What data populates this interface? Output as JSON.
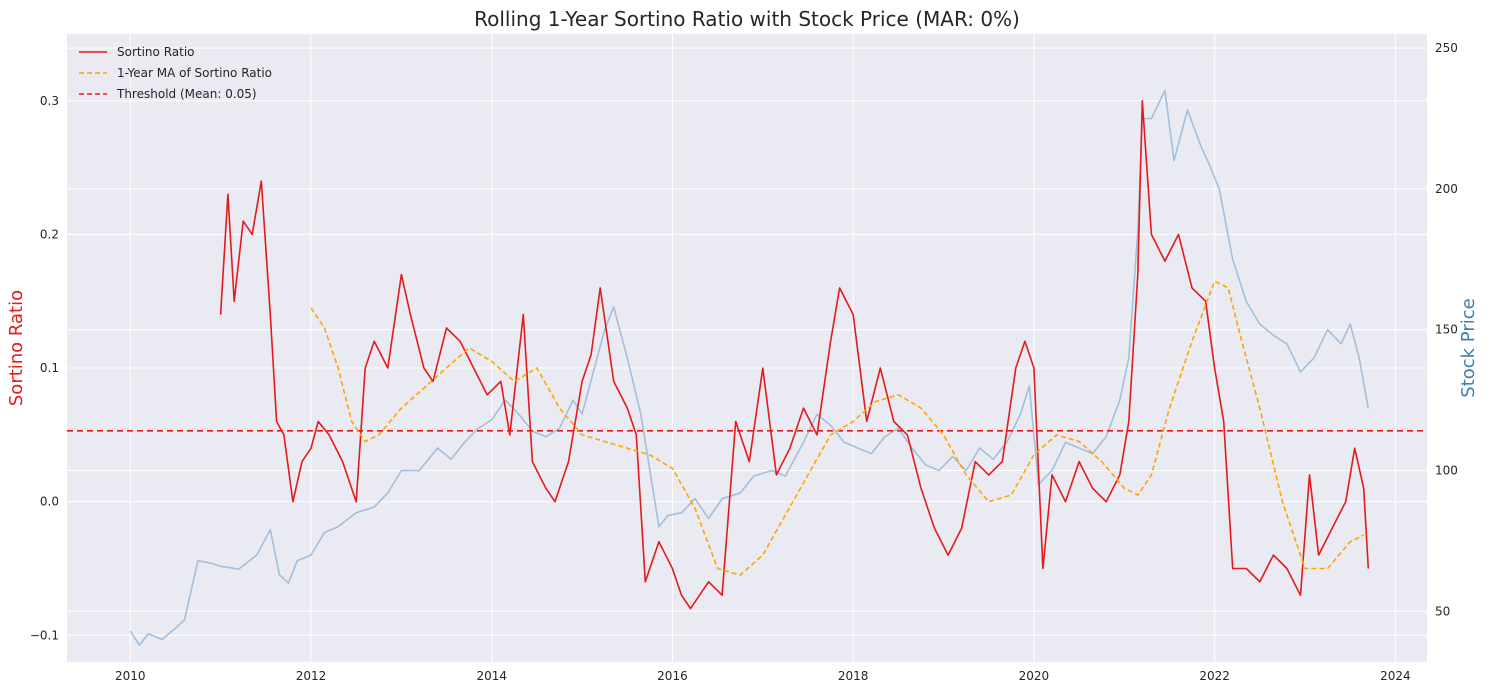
{
  "chart_data": {
    "type": "line",
    "title": "Rolling 1-Year Sortino Ratio with Stock Price (MAR: 0%)",
    "xlabel": "",
    "ylabel_left": "Sortino Ratio",
    "ylabel_right": "Stock Price",
    "xlim": [
      2009.3,
      2024.35
    ],
    "ylim_left": [
      -0.12,
      0.35
    ],
    "ylim_right": [
      32,
      255
    ],
    "x_ticks": [
      2010,
      2012,
      2014,
      2016,
      2018,
      2020,
      2022,
      2024
    ],
    "x_tick_labels": [
      "2010",
      "2012",
      "2014",
      "2016",
      "2018",
      "2020",
      "2022",
      "2024"
    ],
    "y_left_ticks": [
      -0.1,
      0.0,
      0.1,
      0.2,
      0.3
    ],
    "y_left_tick_labels": [
      "−0.1",
      "0.0",
      "0.1",
      "0.2",
      "0.3"
    ],
    "y_right_ticks": [
      50,
      100,
      150,
      200,
      250
    ],
    "y_right_tick_labels": [
      "50",
      "100",
      "150",
      "200",
      "250"
    ],
    "grid": true,
    "legend_position": "top-left",
    "colors": {
      "sortino": "#e41a1c",
      "ma": "#ffa500",
      "threshold": "#e41a1c",
      "price": "#a2bfdc",
      "left_axis_label": "#e41a1c",
      "right_axis_label": "#3b7fb5",
      "plot_background": "#eaeaf2",
      "grid": "#ffffff"
    },
    "threshold": {
      "label": "Threshold (Mean: 0.05)",
      "value": 0.053
    },
    "series": [
      {
        "name": "Sortino Ratio",
        "axis": "left",
        "style": "solid",
        "x": [
          2011.0,
          2011.08,
          2011.15,
          2011.25,
          2011.35,
          2011.45,
          2011.55,
          2011.62,
          2011.7,
          2011.8,
          2011.9,
          2012.0,
          2012.08,
          2012.2,
          2012.35,
          2012.5,
          2012.6,
          2012.7,
          2012.85,
          2013.0,
          2013.1,
          2013.25,
          2013.35,
          2013.5,
          2013.65,
          2013.8,
          2013.95,
          2014.1,
          2014.2,
          2014.35,
          2014.45,
          2014.6,
          2014.7,
          2014.85,
          2015.0,
          2015.1,
          2015.2,
          2015.35,
          2015.5,
          2015.6,
          2015.7,
          2015.85,
          2016.0,
          2016.1,
          2016.2,
          2016.4,
          2016.55,
          2016.7,
          2016.85,
          2017.0,
          2017.15,
          2017.3,
          2017.45,
          2017.6,
          2017.75,
          2017.85,
          2018.0,
          2018.15,
          2018.3,
          2018.45,
          2018.6,
          2018.75,
          2018.9,
          2019.05,
          2019.2,
          2019.35,
          2019.5,
          2019.65,
          2019.8,
          2019.9,
          2020.0,
          2020.1,
          2020.2,
          2020.35,
          2020.5,
          2020.65,
          2020.8,
          2020.95,
          2021.05,
          2021.15,
          2021.2,
          2021.3,
          2021.45,
          2021.6,
          2021.75,
          2021.9,
          2022.0,
          2022.1,
          2022.2,
          2022.35,
          2022.5,
          2022.65,
          2022.8,
          2022.95,
          2023.05,
          2023.15,
          2023.3,
          2023.45,
          2023.55,
          2023.65,
          2023.7
        ],
        "values": [
          0.14,
          0.23,
          0.15,
          0.21,
          0.2,
          0.24,
          0.14,
          0.06,
          0.05,
          0.0,
          0.03,
          0.04,
          0.06,
          0.05,
          0.03,
          0.0,
          0.1,
          0.12,
          0.1,
          0.17,
          0.14,
          0.1,
          0.09,
          0.13,
          0.12,
          0.1,
          0.08,
          0.09,
          0.05,
          0.14,
          0.03,
          0.01,
          0.0,
          0.03,
          0.09,
          0.11,
          0.16,
          0.09,
          0.07,
          0.05,
          -0.06,
          -0.03,
          -0.05,
          -0.07,
          -0.08,
          -0.06,
          -0.07,
          0.06,
          0.03,
          0.1,
          0.02,
          0.04,
          0.07,
          0.05,
          0.12,
          0.16,
          0.14,
          0.06,
          0.1,
          0.06,
          0.05,
          0.01,
          -0.02,
          -0.04,
          -0.02,
          0.03,
          0.02,
          0.03,
          0.1,
          0.12,
          0.1,
          -0.05,
          0.02,
          0.0,
          0.03,
          0.01,
          0.0,
          0.02,
          0.06,
          0.17,
          0.3,
          0.2,
          0.18,
          0.2,
          0.16,
          0.15,
          0.1,
          0.06,
          -0.05,
          -0.05,
          -0.06,
          -0.04,
          -0.05,
          -0.07,
          0.02,
          -0.04,
          -0.02,
          0.0,
          0.04,
          0.01,
          -0.05
        ]
      },
      {
        "name": "1-Year MA of Sortino Ratio",
        "axis": "left",
        "style": "dashed",
        "x": [
          2012.0,
          2012.15,
          2012.3,
          2012.45,
          2012.6,
          2012.75,
          2013.0,
          2013.25,
          2013.5,
          2013.75,
          2014.0,
          2014.25,
          2014.5,
          2014.75,
          2015.0,
          2015.25,
          2015.5,
          2015.75,
          2016.0,
          2016.25,
          2016.5,
          2016.75,
          2017.0,
          2017.25,
          2017.5,
          2017.75,
          2018.0,
          2018.25,
          2018.5,
          2018.75,
          2019.0,
          2019.25,
          2019.5,
          2019.75,
          2020.0,
          2020.25,
          2020.5,
          2020.75,
          2021.0,
          2021.15,
          2021.3,
          2021.5,
          2021.75,
          2022.0,
          2022.15,
          2022.3,
          2022.5,
          2022.75,
          2023.0,
          2023.25,
          2023.5,
          2023.65
        ],
        "values": [
          0.145,
          0.13,
          0.1,
          0.06,
          0.045,
          0.05,
          0.07,
          0.085,
          0.1,
          0.115,
          0.105,
          0.09,
          0.1,
          0.07,
          0.05,
          0.045,
          0.04,
          0.035,
          0.025,
          -0.005,
          -0.05,
          -0.055,
          -0.04,
          -0.01,
          0.02,
          0.05,
          0.06,
          0.075,
          0.08,
          0.07,
          0.05,
          0.02,
          0.0,
          0.005,
          0.035,
          0.05,
          0.045,
          0.03,
          0.01,
          0.005,
          0.02,
          0.07,
          0.12,
          0.165,
          0.16,
          0.12,
          0.07,
          0.0,
          -0.05,
          -0.05,
          -0.03,
          -0.025
        ]
      },
      {
        "name": "Stock Price",
        "axis": "right",
        "style": "solid",
        "x": [
          2010.0,
          2010.1,
          2010.2,
          2010.35,
          2010.5,
          2010.6,
          2010.75,
          2010.9,
          2011.0,
          2011.2,
          2011.4,
          2011.55,
          2011.65,
          2011.75,
          2011.85,
          2012.0,
          2012.15,
          2012.3,
          2012.5,
          2012.7,
          2012.85,
          2013.0,
          2013.2,
          2013.4,
          2013.55,
          2013.7,
          2013.85,
          2014.0,
          2014.15,
          2014.3,
          2014.45,
          2014.6,
          2014.75,
          2014.9,
          2015.0,
          2015.1,
          2015.25,
          2015.35,
          2015.5,
          2015.65,
          2015.75,
          2015.85,
          2015.95,
          2016.1,
          2016.25,
          2016.4,
          2016.55,
          2016.75,
          2016.9,
          2017.1,
          2017.25,
          2017.45,
          2017.6,
          2017.75,
          2017.9,
          2018.05,
          2018.2,
          2018.35,
          2018.5,
          2018.65,
          2018.8,
          2018.95,
          2019.1,
          2019.25,
          2019.4,
          2019.55,
          2019.7,
          2019.85,
          2019.95,
          2020.05,
          2020.2,
          2020.35,
          2020.5,
          2020.65,
          2020.8,
          2020.95,
          2021.05,
          2021.15,
          2021.2,
          2021.3,
          2021.45,
          2021.55,
          2021.7,
          2021.85,
          2021.95,
          2022.05,
          2022.2,
          2022.35,
          2022.5,
          2022.65,
          2022.8,
          2022.95,
          2023.1,
          2023.25,
          2023.4,
          2023.5,
          2023.6,
          2023.7
        ],
        "values": [
          43,
          38,
          42,
          40,
          44,
          47,
          68,
          67,
          66,
          65,
          70,
          79,
          63,
          60,
          68,
          70,
          78,
          80,
          85,
          87,
          92,
          100,
          100,
          108,
          104,
          110,
          115,
          118,
          125,
          120,
          114,
          112,
          115,
          125,
          120,
          132,
          150,
          158,
          140,
          120,
          100,
          80,
          84,
          85,
          90,
          83,
          90,
          92,
          98,
          100,
          98,
          110,
          120,
          116,
          110,
          108,
          106,
          112,
          115,
          108,
          102,
          100,
          105,
          100,
          108,
          104,
          110,
          120,
          130,
          95,
          100,
          110,
          108,
          106,
          112,
          125,
          140,
          185,
          225,
          225,
          235,
          210,
          228,
          215,
          208,
          200,
          175,
          160,
          152,
          148,
          145,
          135,
          140,
          150,
          145,
          152,
          140,
          122
        ]
      }
    ],
    "legend": [
      {
        "label": "Sortino Ratio",
        "style": "solid"
      },
      {
        "label": "1-Year MA of Sortino Ratio",
        "style": "dashed"
      },
      {
        "label": "Threshold (Mean: 0.05)",
        "style": "dashed"
      }
    ]
  }
}
